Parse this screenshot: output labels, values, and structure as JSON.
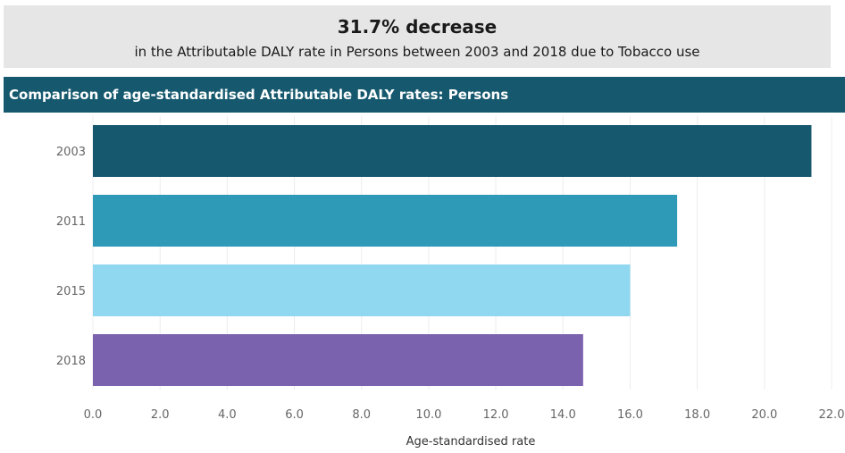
{
  "summary": {
    "headline": "31.7% decrease",
    "subline": "in the Attributable DALY rate in Persons between 2003 and 2018 due to Tobacco use"
  },
  "chart_header": {
    "title": "Comparison of age-standardised Attributable DALY rates: Persons"
  },
  "chart_data": {
    "type": "bar",
    "orientation": "horizontal",
    "categories": [
      "2003",
      "2011",
      "2015",
      "2018"
    ],
    "values": [
      21.4,
      17.4,
      16.0,
      14.6
    ],
    "colors": [
      "#16596f",
      "#2e9ab8",
      "#8fd8f0",
      "#7a62ae"
    ],
    "xlabel": "Age-standardised rate",
    "xlim": [
      0,
      22
    ],
    "xticks": [
      "0.0",
      "2.0",
      "4.0",
      "6.0",
      "8.0",
      "10.0",
      "12.0",
      "14.0",
      "16.0",
      "18.0",
      "20.0",
      "22.0"
    ],
    "grid": true,
    "legend": "none"
  }
}
